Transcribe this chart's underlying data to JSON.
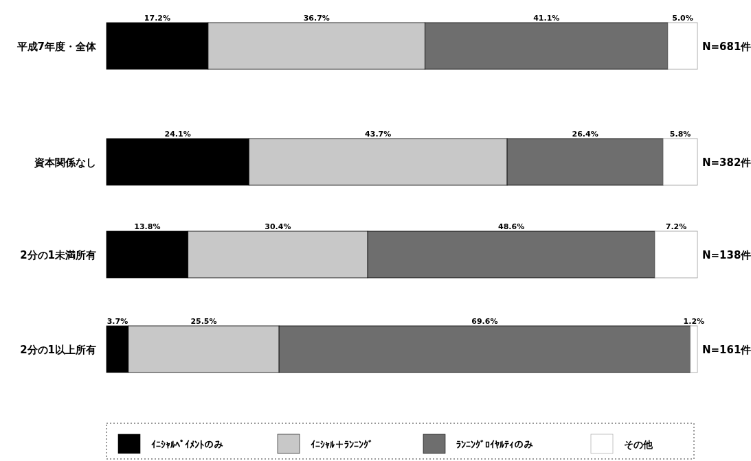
{
  "chart_data": {
    "type": "bar",
    "orientation": "horizontal",
    "stacked": true,
    "categories": [
      "平成7年度・全体",
      "資本関係なし",
      "2分の1未満所有",
      "2分の1以上所有"
    ],
    "tick_labels": "y",
    "legend": "bottom",
    "series": [
      {
        "name": "ｲﾆｼｬﾙﾍﾟｲﾒﾝﾄのみ",
        "color": "#000000",
        "values": [
          17.2,
          24.1,
          13.8,
          3.7
        ],
        "value_labels": [
          "17.2%",
          "24.1%",
          "13.8%",
          "3.7%"
        ]
      },
      {
        "name": "ｲﾆｼｬﾙ＋ﾗﾝﾆﾝｸﾞ",
        "color": "#c8c8c8",
        "values": [
          36.7,
          43.7,
          30.4,
          25.5
        ],
        "value_labels": [
          "36.7%",
          "43.7%",
          "30.4%",
          "25.5%"
        ]
      },
      {
        "name": "ﾗﾝﾆﾝｸﾞﾛｲﾔﾙﾃｨのみ",
        "color": "#6e6e6e",
        "values": [
          41.1,
          26.4,
          48.6,
          69.6
        ],
        "value_labels": [
          "41.1%",
          "26.4%",
          "48.6%",
          "69.6%"
        ]
      },
      {
        "name": "その他",
        "color": "#ffffff",
        "values": [
          5.0,
          5.8,
          7.2,
          1.2
        ],
        "value_labels": [
          "5.0%",
          "5.8%",
          "7.2%",
          "1.2%"
        ]
      }
    ],
    "annotations": [
      "N=681件",
      "N=382件",
      "N=138件",
      "N=161件"
    ]
  }
}
